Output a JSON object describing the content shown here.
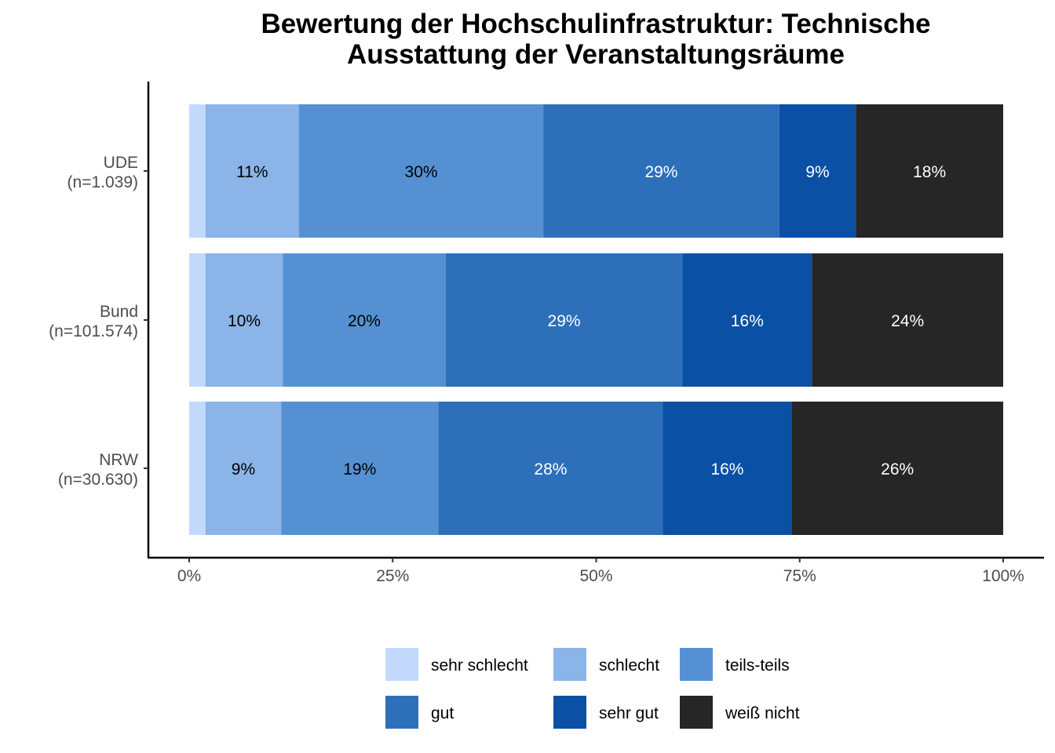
{
  "chart_data": {
    "type": "bar",
    "orientation": "horizontal",
    "stacked": true,
    "title": [
      "Bewertung der Hochschulinfrastruktur: Technische",
      "Ausstattung der Veranstaltungsräume"
    ],
    "categories": [
      {
        "name": "UDE",
        "n": "(n=1.039)"
      },
      {
        "name": "Bund",
        "n": "(n=101.574)"
      },
      {
        "name": "NRW",
        "n": "(n=30.630)"
      }
    ],
    "series": [
      {
        "name": "sehr schlecht",
        "color": "#c3d9fb",
        "text_color": "#000000",
        "values": [
          2,
          2,
          2
        ],
        "labels": [
          "",
          "",
          ""
        ]
      },
      {
        "name": "schlecht",
        "color": "#8bb4e8",
        "text_color": "#000000",
        "values": [
          11.5,
          9.5,
          9.3
        ],
        "labels": [
          "11%",
          "10%",
          "9%"
        ]
      },
      {
        "name": "teils-teils",
        "color": "#5591d2",
        "text_color": "#000000",
        "values": [
          30,
          20,
          19.3
        ],
        "labels": [
          "30%",
          "20%",
          "19%"
        ]
      },
      {
        "name": "gut",
        "color": "#2d70b9",
        "text_color": "#ffffff",
        "values": [
          29,
          29.1,
          27.6
        ],
        "labels": [
          "29%",
          "29%",
          "28%"
        ]
      },
      {
        "name": "sehr gut",
        "color": "#0a50a4",
        "text_color": "#ffffff",
        "values": [
          9.4,
          15.9,
          15.8
        ],
        "labels": [
          "9%",
          "16%",
          "16%"
        ]
      },
      {
        "name": "weiß nicht",
        "color": "#262626",
        "text_color": "#ffffff",
        "values": [
          18.1,
          23.5,
          26
        ],
        "labels": [
          "18%",
          "24%",
          "26%"
        ]
      }
    ],
    "xlim": [
      0,
      100
    ],
    "x_ticks": [
      0,
      25,
      50,
      75,
      100
    ],
    "x_tick_labels": [
      "0%",
      "25%",
      "50%",
      "75%",
      "100%"
    ],
    "xlabel": "",
    "ylabel": "",
    "grid": false,
    "legend_position": "bottom"
  }
}
